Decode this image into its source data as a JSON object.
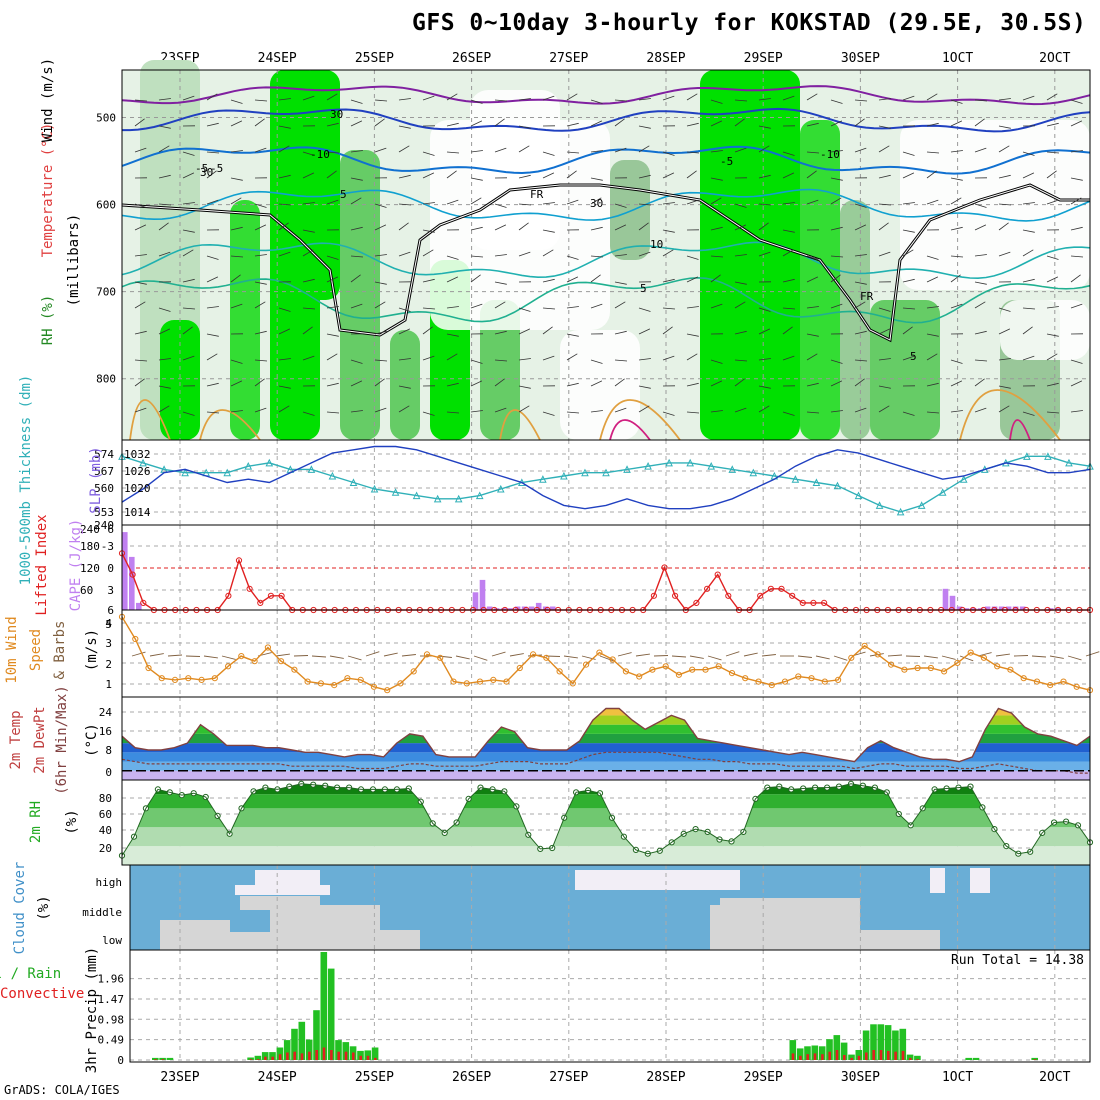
{
  "title": "GFS 0~10day 3-hourly for KOKSTAD (29.5E, 30.5S)",
  "credit": "GrADS: COLA/IGES",
  "colors": {
    "green": "#22c022",
    "red": "#e02020",
    "blue": "#2040c0",
    "cyan": "#30b0b8",
    "orange": "#e08a20",
    "purple": "#c080f0",
    "cloud_blue": "#6aaed6",
    "cloud_gray": "#d6d6d6"
  },
  "chart_data": [
    {
      "id": "upper_air",
      "type": "heatmap",
      "day_labels": [
        "23SEP",
        "24SEP",
        "25SEP",
        "26SEP",
        "27SEP",
        "28SEP",
        "29SEP",
        "30SEP",
        "1OCT",
        "2OCT"
      ],
      "ylabel_parts": [
        "RH (%)",
        "(millibars)",
        "Temperature (°C)",
        "Wind (m/s)"
      ],
      "yticks": [
        500,
        600,
        700,
        800
      ],
      "contour_labels": [
        "-10",
        "-5",
        "-5",
        "5",
        "10",
        "5",
        "30",
        "30",
        "30",
        "FR",
        "FR",
        "-10",
        "-5",
        "5"
      ]
    },
    {
      "id": "thickness_slp",
      "type": "line",
      "ylabel_left": "1000-500mb Thickness (dm)",
      "ylabel_right": "SLP (mb)",
      "yticks_left": [
        553,
        560,
        567,
        574
      ],
      "yticks_right": [
        1014,
        1020,
        1026,
        1032
      ],
      "series": [
        {
          "name": "SLP (mb)",
          "values": [
            1015,
            1019,
            1024,
            1025,
            1023,
            1021,
            1022,
            1021,
            1024,
            1027,
            1030,
            1031,
            1032,
            1032,
            1031,
            1029,
            1027,
            1025,
            1023,
            1021,
            1017,
            1014,
            1013,
            1014,
            1016,
            1014,
            1013,
            1013,
            1014,
            1016,
            1019,
            1022,
            1026,
            1029,
            1031,
            1030,
            1028,
            1026,
            1024,
            1022,
            1023,
            1025,
            1027,
            1026,
            1024,
            1024,
            1025
          ]
        },
        {
          "name": "1000-500mb Thickness (dm)",
          "values": [
            571,
            569,
            567,
            566,
            566,
            566,
            568,
            569,
            567,
            567,
            565,
            563,
            561,
            560,
            559,
            558,
            558,
            559,
            561,
            563,
            564,
            565,
            566,
            566,
            567,
            568,
            569,
            569,
            568,
            567,
            566,
            565,
            564,
            563,
            562,
            559,
            556,
            554,
            556,
            560,
            564,
            567,
            569,
            571,
            571,
            569,
            568
          ]
        }
      ]
    },
    {
      "id": "cape_li",
      "type": "bar",
      "ylabel_left": "Lifted Index",
      "ylabel_right": "CAPE (J/kg)",
      "yticks_left": [
        "6",
        "-3",
        "0",
        "3",
        "6"
      ],
      "yticks_right": [
        60,
        120,
        180,
        240
      ],
      "cape_values": [
        220,
        150,
        20,
        0,
        0,
        0,
        0,
        0,
        0,
        0,
        0,
        0,
        0,
        0,
        0,
        0,
        0,
        0,
        0,
        0,
        0,
        0,
        0,
        0,
        0,
        0,
        0,
        0,
        0,
        0,
        0,
        0,
        0,
        0,
        0,
        0,
        0,
        0,
        0,
        0,
        0,
        0,
        0,
        0,
        0,
        0,
        0,
        0,
        0,
        0,
        50,
        85,
        10,
        5,
        5,
        5,
        10,
        10,
        10,
        20,
        10,
        10,
        0,
        0,
        0,
        0,
        0,
        0,
        0,
        0,
        0,
        0,
        0,
        0,
        0,
        0,
        0,
        0,
        0,
        0,
        0,
        0,
        0,
        0,
        0,
        0,
        0,
        0,
        0,
        0,
        0,
        0,
        0,
        0,
        0,
        0,
        0,
        0,
        0,
        0,
        0,
        0,
        0,
        0,
        0,
        0,
        0,
        0,
        0,
        0,
        0,
        0,
        0,
        0,
        0,
        0,
        0,
        60,
        40,
        10,
        5,
        5,
        5,
        10,
        10,
        10,
        10,
        10,
        10,
        0,
        0,
        0,
        5,
        5,
        0,
        0,
        0,
        0
      ],
      "li_values": [
        -2,
        1,
        5,
        6,
        6,
        6,
        6,
        6,
        6,
        6,
        4,
        -1,
        3,
        5,
        4,
        4,
        6,
        6,
        6,
        6,
        6,
        6,
        6,
        6,
        6,
        6,
        6,
        6,
        6,
        6,
        6,
        6,
        6,
        6,
        6,
        6,
        6,
        6,
        6,
        6,
        6,
        6,
        6,
        6,
        6,
        6,
        6,
        6,
        6,
        6,
        4,
        0,
        4,
        6,
        5,
        3,
        1,
        4,
        6,
        6,
        4,
        3,
        3,
        4,
        5,
        5,
        5,
        6,
        6,
        6,
        6,
        6,
        6,
        6,
        6,
        6,
        6,
        6,
        6,
        6,
        6,
        6,
        6,
        6,
        6,
        6,
        6,
        6,
        6,
        6,
        6,
        6
      ]
    },
    {
      "id": "wind10m",
      "type": "line",
      "ylabel": "10m Wind Speed (m/s) & Barbs",
      "yticks": [
        1,
        2,
        3,
        4,
        5
      ],
      "values": [
        5.2,
        3.9,
        2.2,
        1.6,
        1.5,
        1.6,
        1.5,
        1.6,
        2.3,
        2.9,
        2.6,
        3.4,
        2.6,
        2.1,
        1.4,
        1.3,
        1.2,
        1.6,
        1.5,
        1.1,
        0.9,
        1.3,
        2.0,
        3.0,
        2.8,
        1.4,
        1.3,
        1.4,
        1.5,
        1.4,
        2.2,
        3.0,
        2.8,
        2.0,
        1.3,
        2.4,
        3.1,
        2.7,
        2.0,
        1.7,
        2.1,
        2.3,
        1.8,
        2.1,
        2.1,
        2.3,
        1.9,
        1.6,
        1.4,
        1.2,
        1.4,
        1.7,
        1.6,
        1.4,
        1.5,
        2.8,
        3.5,
        3.0,
        2.4,
        2.1,
        2.2,
        2.2,
        2.0,
        2.5,
        3.1,
        2.8,
        2.3,
        2.1,
        1.6,
        1.4,
        1.2,
        1.4,
        1.1,
        0.9
      ]
    },
    {
      "id": "temp2m",
      "type": "area",
      "ylabel": "2m Temp 2m DewPt (6hr Min/Max) (°C)",
      "yticks": [
        0,
        8,
        16,
        24
      ],
      "temp": [
        15,
        10,
        9,
        9,
        10,
        12,
        20,
        16,
        11,
        11,
        11,
        10,
        10,
        9,
        8,
        8,
        7,
        6,
        7,
        7,
        6,
        12,
        16,
        15,
        7,
        6,
        6,
        6,
        13,
        19,
        17,
        10,
        9,
        9,
        9,
        13,
        22,
        27,
        27,
        22,
        18,
        21,
        24,
        22,
        14,
        13,
        12,
        11,
        10,
        9,
        8,
        7,
        8,
        7,
        6,
        5,
        4,
        10,
        13,
        10,
        8,
        6,
        5,
        5,
        4,
        6,
        18,
        27,
        25,
        19,
        16,
        15,
        13,
        11,
        15
      ],
      "dewpt": [
        5,
        4,
        3,
        3,
        3,
        3,
        3,
        3,
        3,
        3,
        3,
        3,
        3,
        2,
        2,
        2,
        2,
        2,
        1,
        1,
        1,
        2,
        3,
        3,
        2,
        2,
        2,
        2,
        3,
        4,
        4,
        4,
        3,
        3,
        3,
        5,
        7,
        8,
        8,
        8,
        8,
        8,
        7,
        6,
        5,
        5,
        4,
        4,
        3,
        3,
        3,
        2,
        2,
        2,
        2,
        2,
        1,
        2,
        3,
        3,
        2,
        2,
        2,
        2,
        1,
        1,
        2,
        3,
        2,
        1,
        0,
        0,
        0,
        -1,
        -1
      ]
    },
    {
      "id": "rh2m",
      "type": "area",
      "ylabel": "2m RH (%)",
      "yticks": [
        20,
        40,
        60,
        80
      ],
      "values": [
        20,
        40,
        70,
        90,
        87,
        84,
        86,
        82,
        62,
        43,
        70,
        88,
        92,
        90,
        93,
        96,
        95,
        94,
        92,
        92,
        90,
        90,
        90,
        90,
        91,
        77,
        54,
        44,
        55,
        80,
        92,
        90,
        88,
        72,
        42,
        27,
        28,
        60,
        87,
        89,
        86,
        60,
        40,
        26,
        22,
        25,
        34,
        43,
        48,
        45,
        37,
        35,
        45,
        80,
        92,
        93,
        90,
        91,
        92,
        92,
        93,
        96,
        94,
        92,
        87,
        64,
        52,
        70,
        90,
        91,
        92,
        93,
        71,
        48,
        30,
        22,
        24,
        44,
        55,
        56,
        52,
        34
      ]
    },
    {
      "id": "cloud",
      "type": "area",
      "ylabel": "Cloud Cover (%)",
      "yticks": [
        "high",
        "middle",
        "low"
      ]
    },
    {
      "id": "precip",
      "type": "bar",
      "ylabel": "3hr Precip (mm)",
      "ylabel_left": "Total / Rain",
      "ylabel_left2": "Convective",
      "run_total": "Run Total = 14.38",
      "yticks": [
        0,
        0.49,
        0.98,
        1.47,
        1.96
      ],
      "total": [
        0,
        0,
        0,
        0.05,
        0.05,
        0.05,
        0,
        0,
        0,
        0,
        0,
        0,
        0,
        0,
        0,
        0,
        0.06,
        0.1,
        0.19,
        0.19,
        0.3,
        0.48,
        0.75,
        0.92,
        0.49,
        1.2,
        2.6,
        2.2,
        0.48,
        0.43,
        0.33,
        0.22,
        0.23,
        0.3,
        0,
        0,
        0,
        0,
        0,
        0,
        0,
        0,
        0,
        0,
        0,
        0,
        0,
        0,
        0,
        0,
        0,
        0,
        0,
        0,
        0,
        0,
        0,
        0,
        0,
        0,
        0,
        0,
        0,
        0,
        0,
        0,
        0,
        0,
        0,
        0,
        0,
        0,
        0,
        0,
        0,
        0,
        0,
        0,
        0,
        0,
        0,
        0,
        0,
        0,
        0,
        0,
        0,
        0,
        0,
        0,
        0.48,
        0.28,
        0.33,
        0.35,
        0.33,
        0.5,
        0.6,
        0.42,
        0.13,
        0.24,
        0.71,
        0.86,
        0.86,
        0.84,
        0.71,
        0.75,
        0.13,
        0.1,
        0,
        0,
        0,
        0,
        0,
        0,
        0.05,
        0.05,
        0,
        0,
        0,
        0,
        0,
        0,
        0,
        0.05,
        0,
        0,
        0,
        0,
        0,
        0,
        0
      ],
      "convective": [
        0,
        0,
        0,
        0.02,
        0.02,
        0,
        0,
        0,
        0,
        0,
        0,
        0,
        0,
        0,
        0,
        0,
        0.02,
        0.02,
        0.08,
        0.08,
        0.14,
        0.18,
        0.2,
        0.16,
        0.2,
        0.24,
        0.3,
        0.24,
        0.2,
        0.2,
        0.18,
        0.1,
        0.1,
        0.05,
        0,
        0,
        0,
        0,
        0,
        0,
        0,
        0,
        0,
        0,
        0,
        0,
        0,
        0,
        0,
        0,
        0,
        0,
        0,
        0,
        0,
        0,
        0,
        0,
        0,
        0,
        0,
        0,
        0,
        0,
        0,
        0,
        0,
        0,
        0,
        0,
        0,
        0,
        0,
        0,
        0,
        0,
        0,
        0,
        0,
        0,
        0,
        0,
        0,
        0,
        0,
        0,
        0,
        0,
        0,
        0,
        0.16,
        0.1,
        0.14,
        0.16,
        0.14,
        0.2,
        0.24,
        0.12,
        0.05,
        0.1,
        0.18,
        0.24,
        0.24,
        0.22,
        0.2,
        0.22,
        0.05,
        0.02,
        0,
        0,
        0,
        0,
        0,
        0,
        0,
        0,
        0,
        0,
        0,
        0,
        0,
        0,
        0,
        0.02,
        0,
        0,
        0,
        0,
        0,
        0,
        0
      ]
    }
  ]
}
